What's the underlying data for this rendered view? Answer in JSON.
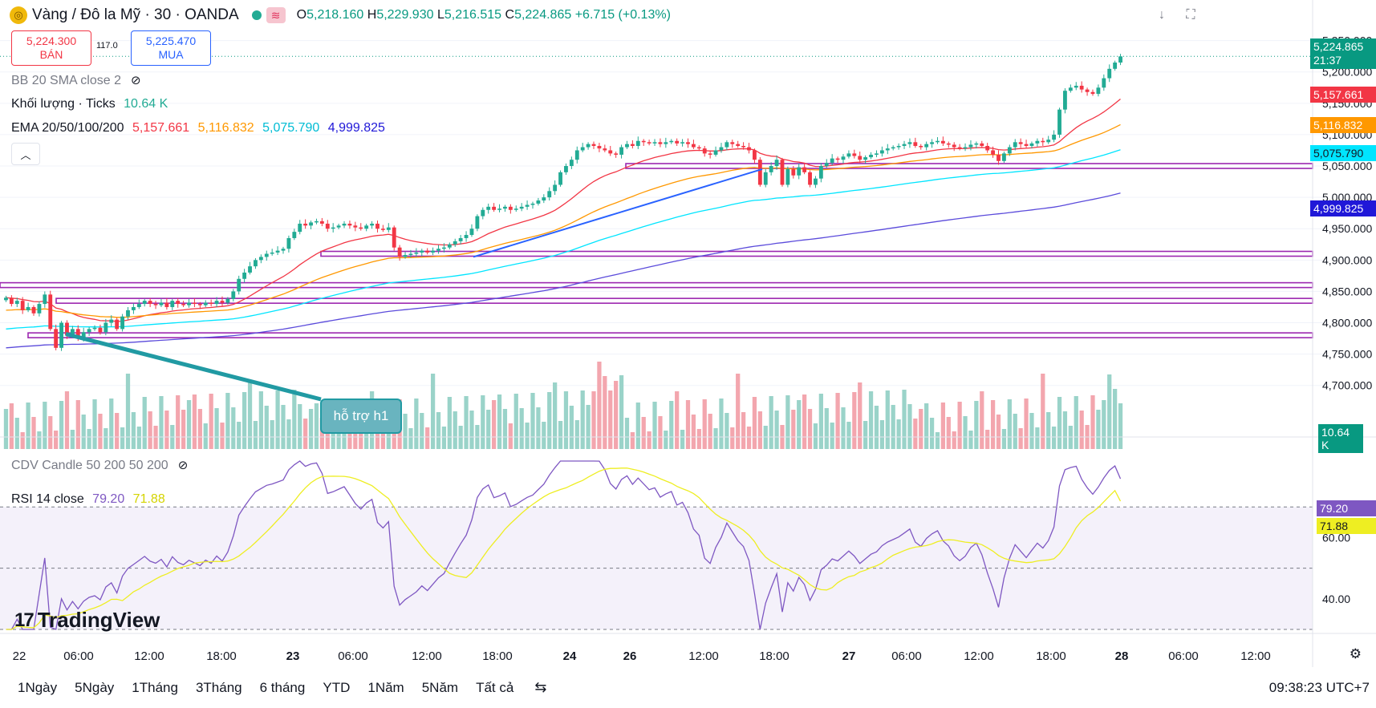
{
  "header": {
    "title": "Vàng / Đô la Mỹ · 30 · OANDA",
    "ohlc": [
      {
        "k": "O",
        "v": "5,218.160"
      },
      {
        "k": "H",
        "v": "5,229.930"
      },
      {
        "k": "L",
        "v": "5,216.515"
      },
      {
        "k": "C",
        "v": "5,224.865"
      }
    ],
    "change": "+6.715 (+0.13%)"
  },
  "trade": {
    "sell_price": "5,224.300",
    "sell_label": "BÁN",
    "spread": "117.0",
    "buy_price": "5,225.470",
    "buy_label": "MUA"
  },
  "indicators": {
    "bb": "BB 20 SMA close 2",
    "volume_name": "Khối lượng · Ticks",
    "volume_value": "10.64 K",
    "ema_name": "EMA 20/50/100/200",
    "ema20": "5,157.661",
    "ema50": "5,116.832",
    "ema100": "5,075.790",
    "ema200": "4,999.825",
    "cdv": "CDV Candle 50 200 50 200",
    "rsi_name": "RSI 14 close",
    "rsi_value": "79.20",
    "rsi_ma": "71.88"
  },
  "annotation": "hỗ trợ h1",
  "price_labels": {
    "last": "5,224.865",
    "countdown": "21:37",
    "volume": "10.64 K"
  },
  "colors": {
    "up": "#22ab94",
    "down": "#f23645",
    "ema20": "#f23645",
    "ema50": "#ff9800",
    "ema100": "#00e5ff",
    "ema200": "#5b4bdb",
    "rsi": "#7e57c2",
    "rsi_ma": "#eeee22",
    "hline": "#9c27b0",
    "trend": "#2962ff"
  },
  "timeframes": [
    "1Ngày",
    "5Ngày",
    "1Tháng",
    "3Tháng",
    "6 tháng",
    "YTD",
    "1Năm",
    "5Năm",
    "Tất cả"
  ],
  "clock": "09:38:23 UTC+7",
  "logo": "TradingView",
  "chart_data": {
    "type": "candlestick",
    "price_axis": {
      "range": [
        4660,
        5270
      ],
      "ticks": [
        "5,250.000",
        "5,200.000",
        "5,150.000",
        "5,100.000",
        "5,050.000",
        "5,000.000",
        "4,950.000",
        "4,900.000",
        "4,850.000",
        "4,800.000",
        "4,750.000",
        "4,700.000"
      ]
    },
    "time_axis": {
      "ticks": [
        "22",
        "06:00",
        "12:00",
        "18:00",
        "23",
        "06:00",
        "12:00",
        "18:00",
        "24",
        "26",
        "12:00",
        "18:00",
        "27",
        "06:00",
        "12:00",
        "18:00",
        "28",
        "06:00",
        "12:00"
      ]
    },
    "rsi_axis": {
      "range": [
        30,
        85
      ],
      "ticks": [
        "60.00",
        "40.00"
      ],
      "bands": [
        70,
        50,
        30
      ]
    },
    "close": [
      4840,
      4830,
      4835,
      4820,
      4825,
      4815,
      4830,
      4845,
      4790,
      4760,
      4800,
      4780,
      4790,
      4775,
      4785,
      4790,
      4792,
      4785,
      4800,
      4805,
      4790,
      4810,
      4820,
      4825,
      4830,
      4835,
      4830,
      4828,
      4832,
      4825,
      4835,
      4830,
      4828,
      4832,
      4830,
      4828,
      4832,
      4830,
      4835,
      4832,
      4838,
      4850,
      4870,
      4880,
      4890,
      4900,
      4905,
      4910,
      4912,
      4915,
      4918,
      4935,
      4945,
      4958,
      4955,
      4960,
      4962,
      4958,
      4950,
      4952,
      4955,
      4958,
      4955,
      4952,
      4950,
      4955,
      4958,
      4950,
      4948,
      4952,
      4920,
      4905,
      4908,
      4910,
      4912,
      4915,
      4912,
      4915,
      4918,
      4920,
      4925,
      4930,
      4935,
      4940,
      4950,
      4970,
      4980,
      4985,
      4980,
      4982,
      4985,
      4980,
      4982,
      4985,
      4988,
      4990,
      4995,
      5000,
      5010,
      5020,
      5040,
      5050,
      5060,
      5075,
      5080,
      5085,
      5082,
      5078,
      5075,
      5070,
      5068,
      5080,
      5085,
      5082,
      5090,
      5088,
      5086,
      5088,
      5085,
      5088,
      5090,
      5086,
      5088,
      5085,
      5080,
      5078,
      5070,
      5068,
      5075,
      5080,
      5088,
      5085,
      5082,
      5080,
      5075,
      5060,
      5020,
      5040,
      5050,
      5060,
      5020,
      5045,
      5035,
      5048,
      5040,
      5020,
      5030,
      5050,
      5055,
      5062,
      5060,
      5065,
      5070,
      5066,
      5060,
      5064,
      5068,
      5070,
      5075,
      5078,
      5080,
      5082,
      5085,
      5088,
      5082,
      5080,
      5085,
      5088,
      5090,
      5086,
      5084,
      5080,
      5078,
      5080,
      5084,
      5086,
      5082,
      5075,
      5068,
      5058,
      5070,
      5080,
      5088,
      5085,
      5082,
      5086,
      5090,
      5088,
      5092,
      5100,
      5140,
      5170,
      5175,
      5178,
      5172,
      5168,
      5165,
      5175,
      5190,
      5205,
      5215,
      5224.865
    ],
    "ema_last": {
      "ema20": 5157.661,
      "ema50": 5116.832,
      "ema100": 5075.79,
      "ema200": 4999.825
    },
    "horizontal_levels": [
      5050,
      4910,
      4860,
      4835,
      4780
    ],
    "rsi_last": 79.2,
    "rsi_ma_last": 71.88,
    "volume_last": 10.64
  }
}
